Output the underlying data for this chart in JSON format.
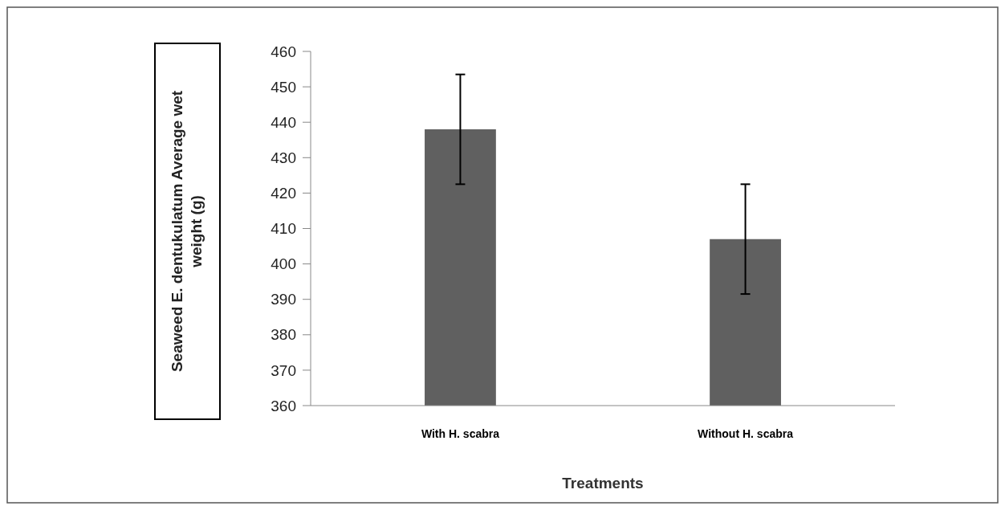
{
  "chart_data": {
    "type": "bar",
    "xlabel": "Treatments",
    "ylabel": "Seaweed E. dentukulatum Average wet weight (g)",
    "categories": [
      "With H. scabra",
      "Without H. scabra"
    ],
    "values": [
      438,
      407
    ],
    "errors": [
      15.5,
      15.5
    ],
    "color": "#606060",
    "ylim": [
      360,
      460
    ],
    "yticks": [
      360,
      370,
      380,
      390,
      400,
      410,
      420,
      430,
      440,
      450,
      460
    ],
    "grid": false
  }
}
